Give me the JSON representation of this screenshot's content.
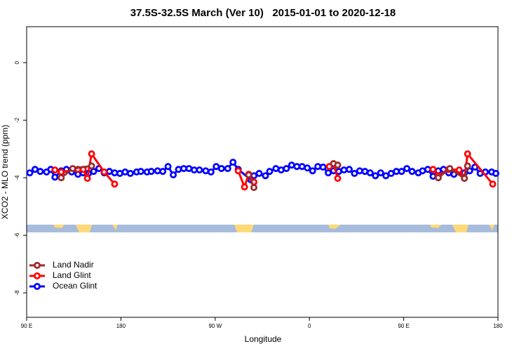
{
  "chart_data": {
    "type": "line",
    "title": "37.5S-32.5S March (Ver 10)   2015-01-01 to 2020-12-18",
    "xlabel": "Longitude",
    "ylabel": "XCO2 - MLO trend (ppm)",
    "xlim": [
      90,
      540
    ],
    "xticks": [
      {
        "value": 90,
        "label": "90 E"
      },
      180,
      {
        "value": 270,
        "label": "90 W"
      },
      {
        "value": 360,
        "label": "0"
      },
      {
        "value": 450,
        "label": "90 E"
      },
      {
        "value": 540,
        "label": "180"
      }
    ],
    "ylim": [
      -8.85,
      1.25
    ],
    "yticks": [
      -8,
      -6,
      -4,
      -2,
      0
    ],
    "grid": false,
    "legend": "bottomleft",
    "series": [
      {
        "name": "Ocean Glint",
        "color": "#0000ff",
        "x": [
          93,
          98,
          103,
          109,
          113,
          117,
          123,
          128,
          133,
          139,
          144,
          149,
          154,
          159,
          164,
          169,
          174,
          179,
          184,
          189,
          195,
          199,
          205,
          209,
          215,
          220,
          225,
          230,
          235,
          240,
          245,
          250,
          255,
          261,
          266,
          271,
          276,
          282,
          287,
          292,
          304,
          307,
          312,
          318,
          322,
          328,
          333,
          338,
          343,
          348,
          353,
          358,
          363,
          368,
          373,
          378,
          383,
          388,
          393,
          398,
          403,
          408,
          413,
          418,
          423,
          428,
          433,
          438,
          443,
          448,
          453,
          458,
          464,
          468,
          473,
          478,
          483,
          488,
          493,
          498,
          503,
          508,
          513,
          518,
          523,
          528,
          534,
          538
        ],
        "values": [
          -3.83,
          -3.71,
          -3.78,
          -3.8,
          -3.71,
          -3.98,
          -3.76,
          -3.71,
          -3.8,
          -3.88,
          -3.83,
          -3.85,
          -3.78,
          -3.68,
          -3.83,
          -3.78,
          -3.83,
          -3.85,
          -3.8,
          -3.85,
          -3.8,
          -3.78,
          -3.8,
          -3.78,
          -3.76,
          -3.78,
          -3.61,
          -3.9,
          -3.71,
          -3.68,
          -3.68,
          -3.73,
          -3.73,
          -3.76,
          -3.8,
          -3.61,
          -3.68,
          -3.68,
          -3.46,
          -3.71,
          -4.07,
          -3.93,
          -3.85,
          -3.93,
          -3.78,
          -3.68,
          -3.73,
          -3.68,
          -3.56,
          -3.61,
          -3.61,
          -3.66,
          -3.76,
          -3.61,
          -3.63,
          -3.83,
          -3.76,
          -3.78,
          -3.73,
          -3.71,
          -3.85,
          -3.76,
          -3.78,
          -3.83,
          -3.93,
          -3.83,
          -3.93,
          -3.85,
          -3.78,
          -3.78,
          -3.68,
          -3.78,
          -3.83,
          -3.76,
          -3.71,
          -3.95,
          -3.76,
          -3.71,
          -3.83,
          -3.88,
          -3.78,
          -3.83,
          -3.76,
          -3.63,
          -3.85,
          -3.8,
          -3.8,
          -3.85
        ]
      },
      {
        "name": "Land Glint",
        "color": "#ff0000",
        "x": [
          117,
          123,
          139,
          144,
          148,
          152,
          164,
          174,
          null,
          292,
          298,
          302,
          307,
          null,
          379,
          383,
          387,
          null,
          478,
          483,
          493,
          503,
          508,
          511,
          535
        ],
        "values": [
          -3.73,
          -3.8,
          -3.71,
          -3.71,
          -4.02,
          -3.17,
          -3.8,
          -4.22,
          null,
          -3.76,
          -4.32,
          -3.88,
          -4.15,
          null,
          -3.61,
          -3.51,
          -4.02,
          null,
          -3.71,
          -3.93,
          -3.71,
          -3.73,
          -4.02,
          -3.17,
          -4.22
        ]
      },
      {
        "name": "Land Nadir",
        "color": "#a0282c",
        "x": [
          123,
          134,
          152,
          null,
          302,
          307,
          null,
          383,
          387,
          null,
          483,
          494,
          508,
          511
        ],
        "values": [
          -4.0,
          -3.68,
          -3.59,
          null,
          -3.9,
          -4.34,
          null,
          -3.51,
          -3.56,
          null,
          -4.0,
          -3.68,
          -4.02,
          -3.59
        ]
      }
    ]
  }
}
